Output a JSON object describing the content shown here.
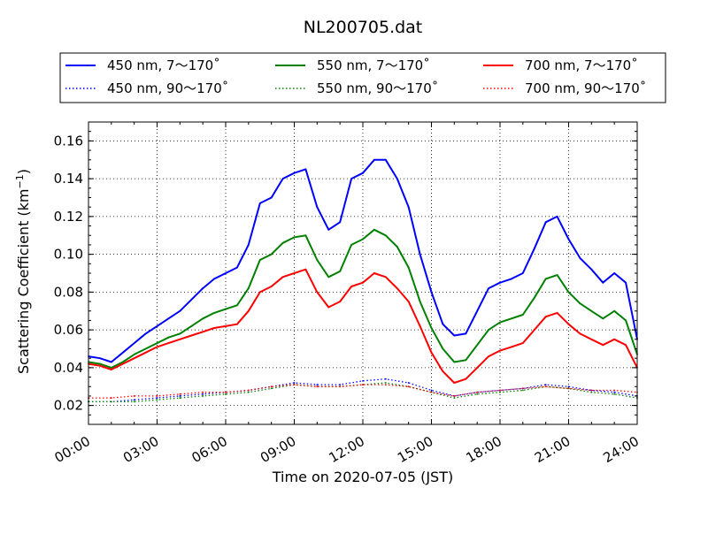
{
  "chart_data": {
    "type": "line",
    "title": "NL200705.dat",
    "xlabel": "Time on 2020-07-05 (JST)",
    "ylabel_main": "Scattering Coefficient (km",
    "ylabel_sup": "−1",
    "ylabel_tail": ")",
    "xlim": [
      0,
      24
    ],
    "ylim": [
      0.01,
      0.17
    ],
    "x_ticks": [
      0,
      3,
      6,
      9,
      12,
      15,
      18,
      21,
      24
    ],
    "x_tick_labels": [
      "00:00",
      "03:00",
      "06:00",
      "09:00",
      "12:00",
      "15:00",
      "18:00",
      "21:00",
      "24:00"
    ],
    "y_ticks": [
      0.02,
      0.04,
      0.06,
      0.08,
      0.1,
      0.12,
      0.14,
      0.16
    ],
    "y_tick_labels": [
      "0.02",
      "0.04",
      "0.06",
      "0.08",
      "0.10",
      "0.12",
      "0.14",
      "0.16"
    ],
    "grid": true,
    "legend_position": "top",
    "series": [
      {
        "name": "450 nm, 7～170˚",
        "color": "#0000ff",
        "style": "solid",
        "x": [
          0,
          0.5,
          1,
          1.5,
          2,
          2.5,
          3,
          3.5,
          4,
          4.5,
          5,
          5.5,
          6,
          6.5,
          7,
          7.5,
          8,
          8.5,
          9,
          9.5,
          10,
          10.5,
          11,
          11.5,
          12,
          12.5,
          13,
          13.5,
          14,
          14.5,
          15,
          15.5,
          16,
          16.5,
          17,
          17.5,
          18,
          18.5,
          19,
          19.5,
          20,
          20.5,
          21,
          21.5,
          22,
          22.5,
          23,
          23.5,
          24
        ],
        "y": [
          0.046,
          0.045,
          0.043,
          0.048,
          0.053,
          0.058,
          0.062,
          0.066,
          0.07,
          0.076,
          0.082,
          0.087,
          0.09,
          0.093,
          0.105,
          0.127,
          0.13,
          0.14,
          0.143,
          0.145,
          0.125,
          0.113,
          0.117,
          0.14,
          0.143,
          0.15,
          0.15,
          0.14,
          0.125,
          0.1,
          0.08,
          0.063,
          0.057,
          0.058,
          0.07,
          0.082,
          0.085,
          0.087,
          0.09,
          0.103,
          0.117,
          0.12,
          0.108,
          0.098,
          0.092,
          0.085,
          0.09,
          0.085,
          0.055
        ]
      },
      {
        "name": "550 nm, 7～170˚",
        "color": "#008000",
        "style": "solid",
        "x": [
          0,
          0.5,
          1,
          1.5,
          2,
          2.5,
          3,
          3.5,
          4,
          4.5,
          5,
          5.5,
          6,
          6.5,
          7,
          7.5,
          8,
          8.5,
          9,
          9.5,
          10,
          10.5,
          11,
          11.5,
          12,
          12.5,
          13,
          13.5,
          14,
          14.5,
          15,
          15.5,
          16,
          16.5,
          17,
          17.5,
          18,
          18.5,
          19,
          19.5,
          20,
          20.5,
          21,
          21.5,
          22,
          22.5,
          23,
          23.5,
          24
        ],
        "y": [
          0.043,
          0.042,
          0.04,
          0.043,
          0.047,
          0.05,
          0.053,
          0.056,
          0.058,
          0.062,
          0.066,
          0.069,
          0.071,
          0.073,
          0.082,
          0.097,
          0.1,
          0.106,
          0.109,
          0.11,
          0.097,
          0.088,
          0.091,
          0.105,
          0.108,
          0.113,
          0.11,
          0.104,
          0.093,
          0.075,
          0.061,
          0.05,
          0.043,
          0.044,
          0.052,
          0.06,
          0.064,
          0.066,
          0.068,
          0.077,
          0.087,
          0.089,
          0.08,
          0.074,
          0.07,
          0.066,
          0.07,
          0.065,
          0.047
        ]
      },
      {
        "name": "700 nm, 7～170˚",
        "color": "#ff0000",
        "style": "solid",
        "x": [
          0,
          0.5,
          1,
          1.5,
          2,
          2.5,
          3,
          3.5,
          4,
          4.5,
          5,
          5.5,
          6,
          6.5,
          7,
          7.5,
          8,
          8.5,
          9,
          9.5,
          10,
          10.5,
          11,
          11.5,
          12,
          12.5,
          13,
          13.5,
          14,
          14.5,
          15,
          15.5,
          16,
          16.5,
          17,
          17.5,
          18,
          18.5,
          19,
          19.5,
          20,
          20.5,
          21,
          21.5,
          22,
          22.5,
          23,
          23.5,
          24
        ],
        "y": [
          0.042,
          0.041,
          0.039,
          0.042,
          0.045,
          0.048,
          0.051,
          0.053,
          0.055,
          0.057,
          0.059,
          0.061,
          0.062,
          0.063,
          0.07,
          0.08,
          0.083,
          0.088,
          0.09,
          0.092,
          0.08,
          0.072,
          0.075,
          0.083,
          0.085,
          0.09,
          0.088,
          0.082,
          0.075,
          0.062,
          0.048,
          0.038,
          0.032,
          0.034,
          0.04,
          0.046,
          0.049,
          0.051,
          0.053,
          0.06,
          0.067,
          0.069,
          0.063,
          0.058,
          0.055,
          0.052,
          0.055,
          0.052,
          0.04
        ]
      },
      {
        "name": "450 nm, 90～170˚",
        "color": "#0000ff",
        "style": "dotted",
        "x": [
          0,
          1,
          2,
          3,
          4,
          5,
          6,
          7,
          8,
          9,
          10,
          11,
          12,
          13,
          14,
          15,
          16,
          17,
          18,
          19,
          20,
          21,
          22,
          23,
          24
        ],
        "y": [
          0.022,
          0.022,
          0.023,
          0.024,
          0.025,
          0.026,
          0.027,
          0.028,
          0.03,
          0.032,
          0.031,
          0.031,
          0.033,
          0.034,
          0.032,
          0.028,
          0.025,
          0.027,
          0.028,
          0.029,
          0.031,
          0.03,
          0.028,
          0.027,
          0.025
        ]
      },
      {
        "name": "550 nm, 90～170˚",
        "color": "#008000",
        "style": "dotted",
        "x": [
          0,
          1,
          2,
          3,
          4,
          5,
          6,
          7,
          8,
          9,
          10,
          11,
          12,
          13,
          14,
          15,
          16,
          17,
          18,
          19,
          20,
          21,
          22,
          23,
          24
        ],
        "y": [
          0.022,
          0.022,
          0.022,
          0.023,
          0.024,
          0.025,
          0.026,
          0.027,
          0.029,
          0.031,
          0.03,
          0.03,
          0.031,
          0.032,
          0.03,
          0.027,
          0.024,
          0.026,
          0.027,
          0.028,
          0.03,
          0.029,
          0.027,
          0.026,
          0.024
        ]
      },
      {
        "name": "700 nm, 90～170˚",
        "color": "#ff0000",
        "style": "dotted",
        "x": [
          0,
          1,
          2,
          3,
          4,
          5,
          6,
          7,
          8,
          9,
          10,
          11,
          12,
          13,
          14,
          15,
          16,
          17,
          18,
          19,
          20,
          21,
          22,
          23,
          24
        ],
        "y": [
          0.024,
          0.024,
          0.025,
          0.025,
          0.026,
          0.027,
          0.027,
          0.028,
          0.03,
          0.031,
          0.03,
          0.03,
          0.031,
          0.031,
          0.03,
          0.027,
          0.025,
          0.027,
          0.028,
          0.029,
          0.03,
          0.029,
          0.028,
          0.028,
          0.027
        ]
      }
    ]
  }
}
